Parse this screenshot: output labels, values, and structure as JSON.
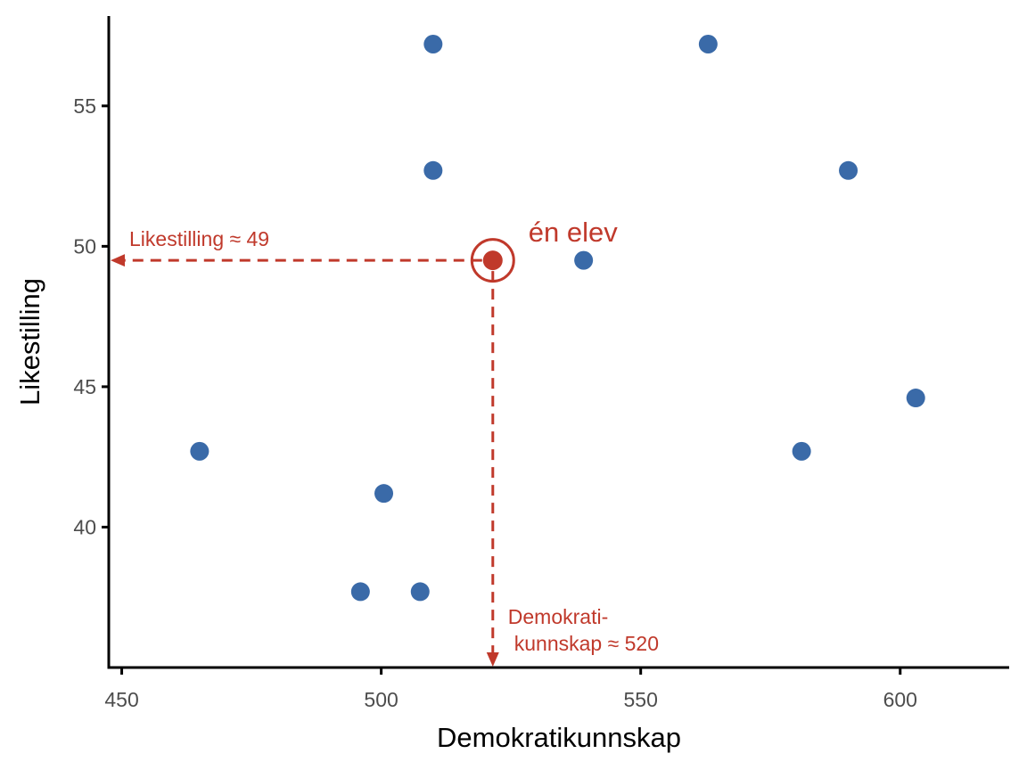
{
  "chart_data": {
    "type": "scatter",
    "xlabel": "Demokratikunnskap",
    "ylabel": "Likestilling",
    "xlim": [
      447.5,
      621
    ],
    "ylim": [
      35,
      58.2
    ],
    "x_ticks": [
      450,
      500,
      550,
      600
    ],
    "y_ticks": [
      40,
      45,
      50,
      55
    ],
    "grid": false,
    "series": [
      {
        "points": [
          {
            "x": 465,
            "y": 42.7
          },
          {
            "x": 500.5,
            "y": 41.2
          },
          {
            "x": 496,
            "y": 37.7
          },
          {
            "x": 507.5,
            "y": 37.7
          },
          {
            "x": 510,
            "y": 57.2
          },
          {
            "x": 510,
            "y": 52.7
          },
          {
            "x": 539,
            "y": 49.5
          },
          {
            "x": 563,
            "y": 57.2
          },
          {
            "x": 590,
            "y": 52.7
          },
          {
            "x": 581,
            "y": 42.7
          },
          {
            "x": 603,
            "y": 44.6
          }
        ],
        "color": "#3a6aa8"
      }
    ],
    "highlight": {
      "x": 521.5,
      "y": 49.5,
      "color": "#c0392b",
      "label": "én elev",
      "y_annotation": "Likestilling ≈ 49",
      "x_annotation_line1": "Demokrati-",
      "x_annotation_line2": "kunnskap ≈ 520"
    }
  }
}
